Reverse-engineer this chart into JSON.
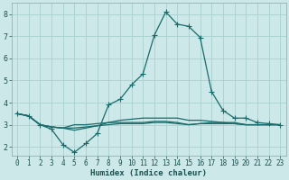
{
  "xlabel": "Humidex (Indice chaleur)",
  "bg_color": "#cce8e8",
  "grid_color": "#aad0d0",
  "line_color": "#1a6b6b",
  "xlim": [
    -0.5,
    23.5
  ],
  "ylim": [
    1.6,
    8.5
  ],
  "yticks": [
    2,
    3,
    4,
    5,
    6,
    7,
    8
  ],
  "xticks": [
    0,
    1,
    2,
    3,
    4,
    5,
    6,
    7,
    8,
    9,
    10,
    11,
    12,
    13,
    14,
    15,
    16,
    17,
    18,
    19,
    20,
    21,
    22,
    23
  ],
  "line1_x": [
    0,
    1,
    2,
    3,
    4,
    5,
    6,
    7,
    8,
    9,
    10,
    11,
    12,
    13,
    14,
    15,
    16,
    17,
    18,
    19,
    20,
    21,
    22,
    23
  ],
  "line1_y": [
    3.5,
    3.4,
    3.0,
    2.8,
    2.1,
    1.75,
    2.15,
    2.6,
    3.9,
    4.15,
    4.8,
    5.3,
    7.05,
    8.1,
    7.55,
    7.45,
    6.95,
    4.5,
    3.65,
    3.3,
    3.3,
    3.1,
    3.05,
    3.0
  ],
  "line2_x": [
    0,
    1,
    2,
    3,
    4,
    5,
    6,
    7,
    8,
    9,
    10,
    11,
    12,
    13,
    14,
    15,
    16,
    17,
    18,
    19,
    20,
    21,
    22,
    23
  ],
  "line2_y": [
    3.5,
    3.4,
    3.0,
    2.9,
    2.85,
    3.0,
    3.0,
    3.05,
    3.1,
    3.1,
    3.1,
    3.1,
    3.15,
    3.15,
    3.1,
    3.0,
    3.05,
    3.05,
    3.05,
    3.05,
    3.0,
    3.0,
    3.0,
    3.0
  ],
  "line3_x": [
    0,
    1,
    2,
    3,
    4,
    5,
    6,
    7,
    8,
    9,
    10,
    11,
    12,
    13,
    14,
    15,
    16,
    17,
    18,
    19,
    20,
    21,
    22,
    23
  ],
  "line3_y": [
    3.5,
    3.4,
    3.0,
    2.9,
    2.85,
    2.85,
    2.9,
    2.95,
    3.0,
    3.05,
    3.05,
    3.05,
    3.1,
    3.1,
    3.05,
    3.0,
    3.05,
    3.1,
    3.1,
    3.05,
    3.0,
    3.0,
    3.0,
    3.0
  ],
  "line4_x": [
    0,
    1,
    2,
    3,
    4,
    5,
    6,
    7,
    8,
    9,
    10,
    11,
    12,
    13,
    14,
    15,
    16,
    17,
    18,
    19,
    20,
    21,
    22,
    23
  ],
  "line4_y": [
    3.5,
    3.4,
    3.0,
    2.9,
    2.85,
    2.75,
    2.85,
    2.95,
    3.1,
    3.2,
    3.25,
    3.3,
    3.3,
    3.3,
    3.3,
    3.2,
    3.2,
    3.15,
    3.1,
    3.1,
    3.0,
    3.0,
    3.0,
    3.0
  ]
}
